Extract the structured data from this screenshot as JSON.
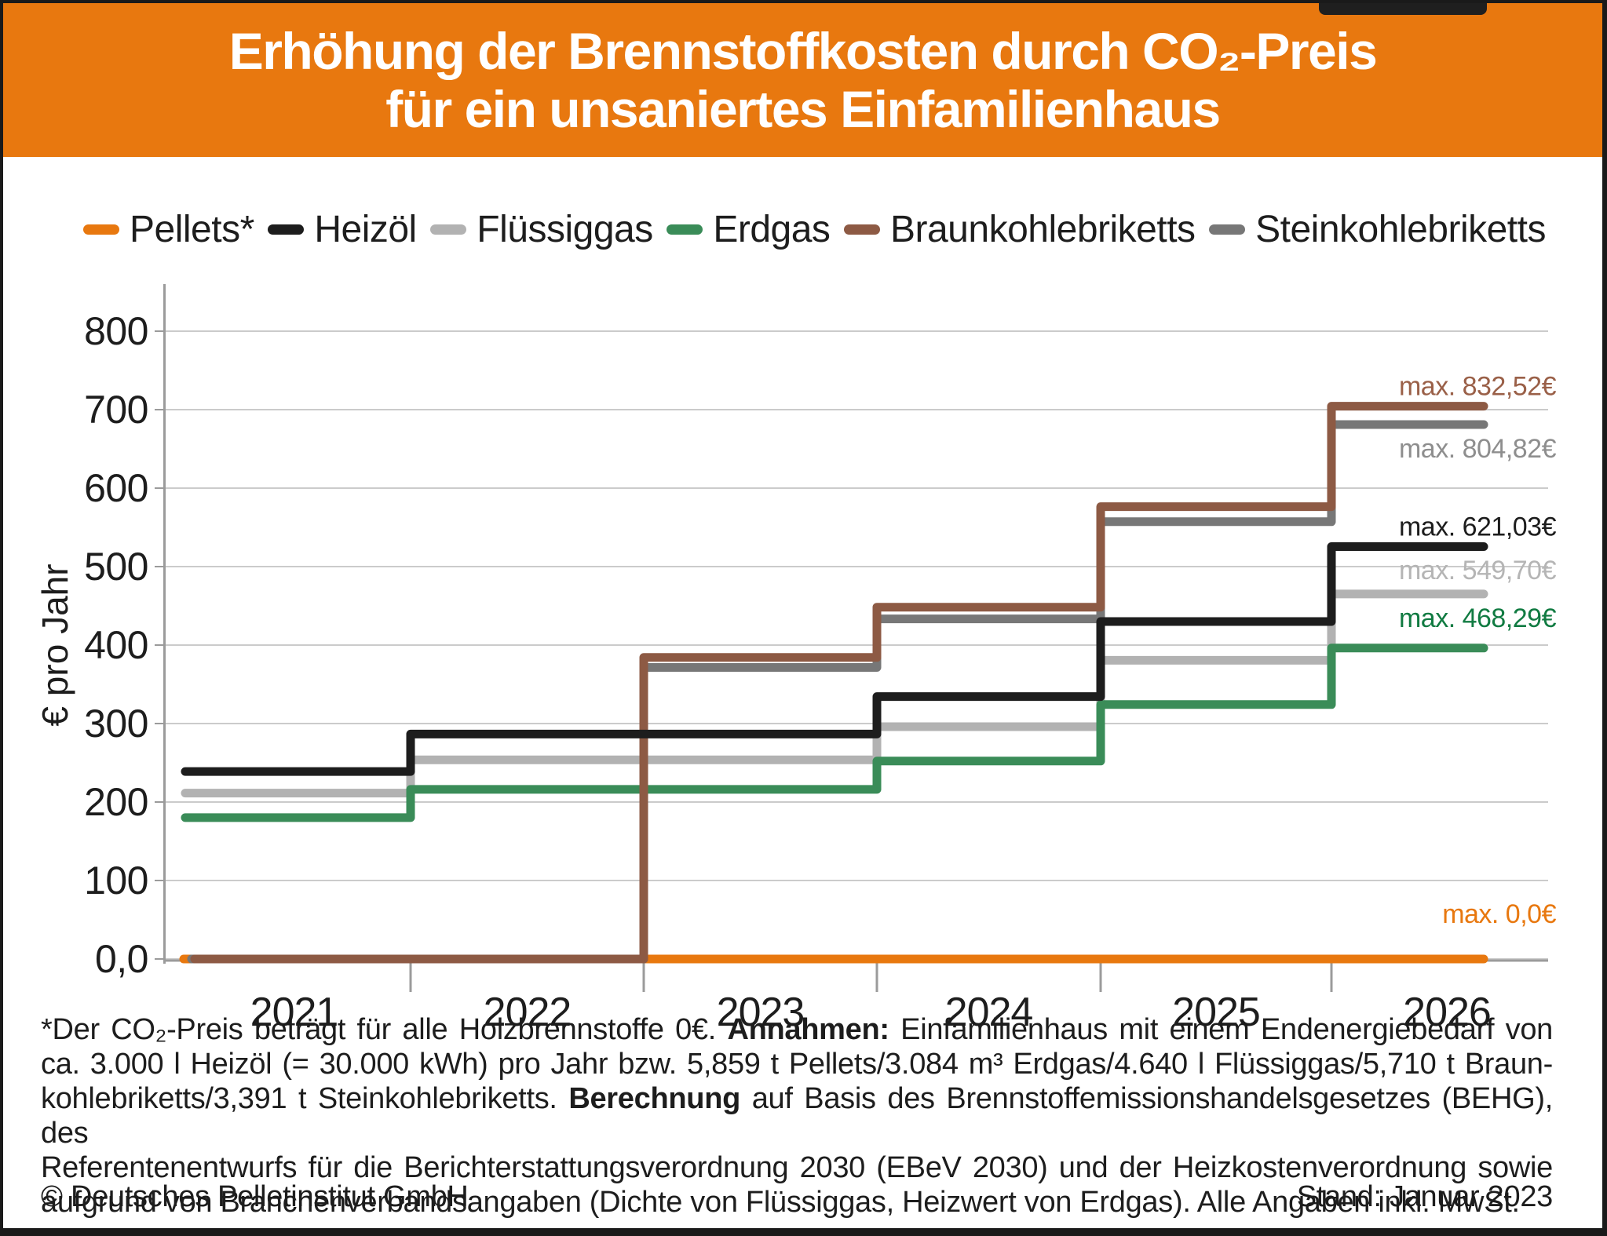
{
  "header": {
    "title_line1": "Erhöhung der Brennstoffkosten durch CO₂-Preis",
    "title_line2": "für ein unsaniertes Einfamilienhaus",
    "bg_color": "#E8780F",
    "text_color": "#ffffff"
  },
  "legend": {
    "items": [
      {
        "label": "Pellets*",
        "color": "#E8780F"
      },
      {
        "label": "Heizöl",
        "color": "#1D1D1D"
      },
      {
        "label": "Flüssiggas",
        "color": "#B2B2B2"
      },
      {
        "label": "Erdgas",
        "color": "#3A8C58"
      },
      {
        "label": "Braunkohlebriketts",
        "color": "#8D5A44"
      },
      {
        "label": "Steinkohlebriketts",
        "color": "#777777"
      }
    ]
  },
  "chart_data": {
    "type": "line",
    "subtype": "step",
    "title": "Erhöhung der Brennstoffkosten durch CO₂-Preis für ein unsaniertes Einfamilienhaus",
    "ylabel": "€ pro Jahr",
    "ylim": [
      0,
      860
    ],
    "grid": true,
    "y_ticks": [
      {
        "value": 800,
        "label": "800"
      },
      {
        "value": 700,
        "label": "700"
      },
      {
        "value": 600,
        "label": "600"
      },
      {
        "value": 500,
        "label": "500"
      },
      {
        "value": 400,
        "label": "400"
      },
      {
        "value": 300,
        "label": "300"
      },
      {
        "value": 200,
        "label": "200"
      },
      {
        "value": 100,
        "label": "100"
      },
      {
        "value": 0,
        "label": "0,0"
      }
    ],
    "categories": [
      "2021",
      "2022",
      "2023",
      "2024",
      "2025",
      "2026"
    ],
    "series": [
      {
        "name": "Pellets*",
        "color": "#E8780F",
        "values": [
          0,
          0,
          0,
          0,
          0,
          0
        ],
        "max_label": "max. 0,0€",
        "label_color": "#E8780F",
        "label_dy": -46,
        "x_start": 230
      },
      {
        "name": "Flüssiggas",
        "color": "#B2B2B2",
        "values": [
          211.4,
          253.7,
          253.7,
          296.0,
          380.6,
          465.1
        ],
        "max_label": "max. 549,70€",
        "label_color": "#B5B5B5",
        "label_dy": -19,
        "x_start": 232
      },
      {
        "name": "Erdgas",
        "color": "#3A8C58",
        "values": [
          180.1,
          216.1,
          216.1,
          252.2,
          324.2,
          396.2
        ],
        "max_label": "max. 468,29€",
        "label_color": "#117B42",
        "label_dy": -27,
        "x_start": 232
      },
      {
        "name": "Steinkohlebriketts",
        "color": "#777777",
        "values": [
          0,
          0,
          371.5,
          433.4,
          557.2,
          681.0
        ],
        "max_label": "max. 804,82€",
        "label_color": "#8E8E8E",
        "label_dy": 42,
        "x_start": 240
      },
      {
        "name": "Braunkohlebriketts",
        "color": "#8D5A44",
        "values": [
          0,
          0,
          384.2,
          448.3,
          576.4,
          704.4
        ],
        "max_label": "max. 832,52€",
        "label_color": "#9A6048",
        "label_dy": -14,
        "x_start": 244
      },
      {
        "name": "Heizöl",
        "color": "#1D1D1D",
        "values": [
          238.9,
          286.6,
          286.6,
          334.4,
          430.0,
          525.5
        ],
        "max_label": "max. 621,03€",
        "label_color": "#1D1D1D",
        "label_dy": -14,
        "x_start": 232
      }
    ],
    "legend_position": "top",
    "axis_color": "#9B9B9B",
    "grid_color": "#CBCBCB",
    "tick_label_color": "#1D1D1D"
  },
  "footnote": {
    "lines": [
      {
        "justify": true,
        "segments": [
          {
            "t": "*Der CO₂-Preis beträgt für alle Holzbrennstoffe 0€. "
          },
          {
            "t": "Annahmen:",
            "b": true
          },
          {
            "t": " Einfamilienhaus mit einem Endenergiebedarf von"
          }
        ]
      },
      {
        "justify": true,
        "segments": [
          {
            "t": "ca. 3.000 l Heizöl (= 30.000 kWh) pro Jahr bzw. 5,859 t Pellets/3.084 m³ Erdgas/4.640 l Flüssiggas/5,710 t Braun-"
          }
        ]
      },
      {
        "justify": true,
        "segments": [
          {
            "t": "kohlebriketts/3,391 t Steinkohlebriketts. "
          },
          {
            "t": "Berechnung",
            "b": true
          },
          {
            "t": " auf Basis des Brennstoffemissionshandelsgesetzes (BEHG), des"
          }
        ]
      },
      {
        "justify": true,
        "segments": [
          {
            "t": "Referentenentwurfs für die Berichterstattungsverordnung 2030 (EBeV 2030) und der Heizkostenverordnung sowie"
          }
        ]
      },
      {
        "justify": false,
        "segments": [
          {
            "t": "aufgrund von Branchenverbandsangaben (Dichte von Flüssiggas, Heizwert von Erdgas). Alle Angaben inkl. MwSt."
          }
        ]
      }
    ]
  },
  "footer": {
    "copyright": "© Deutsches Pelletinstitut GmbH",
    "stand": "Stand: Januar 2023"
  }
}
